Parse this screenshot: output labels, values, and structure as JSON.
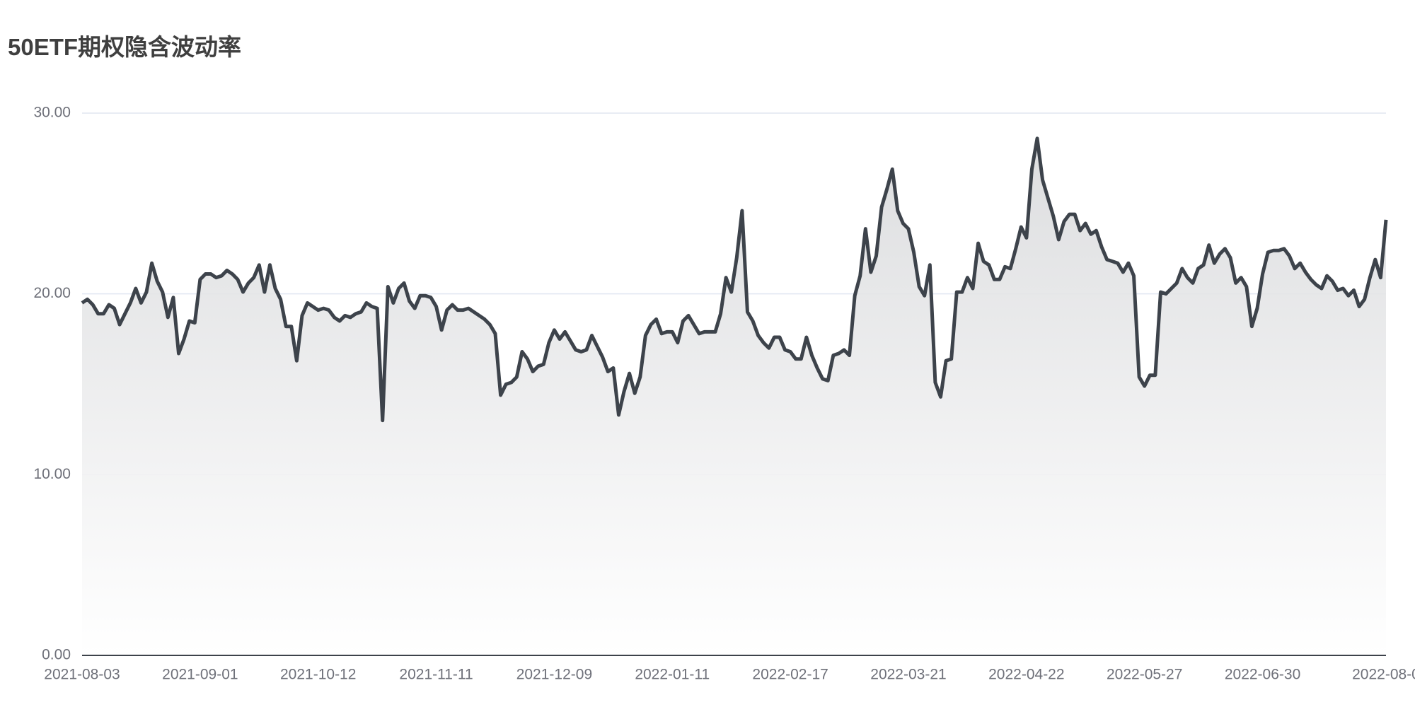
{
  "chart_data": {
    "type": "line",
    "title": "50ETF期权隐含波动率",
    "categories": [
      "2021-08-03",
      null,
      null,
      null,
      null,
      null,
      null,
      null,
      null,
      null,
      null,
      null,
      null,
      null,
      null,
      null,
      null,
      null,
      null,
      null,
      null,
      null,
      "2021-09-01",
      null,
      null,
      null,
      null,
      null,
      null,
      null,
      null,
      null,
      null,
      null,
      null,
      null,
      null,
      null,
      null,
      null,
      null,
      null,
      null,
      null,
      "2021-10-12",
      null,
      null,
      null,
      null,
      null,
      null,
      null,
      null,
      null,
      null,
      null,
      null,
      null,
      null,
      null,
      null,
      null,
      null,
      null,
      null,
      null,
      "2021-11-11",
      null,
      null,
      null,
      null,
      null,
      null,
      null,
      null,
      null,
      null,
      null,
      null,
      null,
      null,
      null,
      null,
      null,
      null,
      null,
      null,
      null,
      "2021-12-09",
      null,
      null,
      null,
      null,
      null,
      null,
      null,
      null,
      null,
      null,
      null,
      null,
      null,
      null,
      null,
      null,
      null,
      null,
      null,
      null,
      null,
      "2022-01-11",
      null,
      null,
      null,
      null,
      null,
      null,
      null,
      null,
      null,
      null,
      null,
      null,
      null,
      null,
      null,
      null,
      null,
      null,
      null,
      null,
      null,
      "2022-02-17",
      null,
      null,
      null,
      null,
      null,
      null,
      null,
      null,
      null,
      null,
      null,
      null,
      null,
      null,
      null,
      null,
      null,
      null,
      null,
      null,
      null,
      "2022-03-21",
      null,
      null,
      null,
      null,
      null,
      null,
      null,
      null,
      null,
      null,
      null,
      null,
      null,
      null,
      null,
      null,
      null,
      null,
      null,
      null,
      null,
      "2022-04-22",
      null,
      null,
      null,
      null,
      null,
      null,
      null,
      null,
      null,
      null,
      null,
      null,
      null,
      null,
      null,
      null,
      null,
      null,
      null,
      null,
      null,
      "2022-05-27",
      null,
      null,
      null,
      null,
      null,
      null,
      null,
      null,
      null,
      null,
      null,
      null,
      null,
      null,
      null,
      null,
      null,
      null,
      null,
      null,
      null,
      "2022-06-30",
      null,
      null,
      null,
      null,
      null,
      null,
      null,
      null,
      null,
      null,
      null,
      null,
      null,
      null,
      null,
      null,
      null,
      null,
      null,
      null,
      null,
      null,
      "2022-08-0"
    ],
    "values": [
      19.5,
      19.7,
      19.4,
      18.9,
      18.9,
      19.4,
      19.2,
      18.3,
      18.9,
      19.5,
      20.3,
      19.5,
      20.1,
      21.7,
      20.7,
      20.1,
      18.7,
      19.8,
      16.7,
      17.5,
      18.5,
      18.4,
      20.8,
      21.1,
      21.1,
      20.9,
      21.0,
      21.3,
      21.1,
      20.8,
      20.1,
      20.6,
      20.9,
      21.6,
      20.1,
      21.6,
      20.3,
      19.7,
      18.2,
      18.2,
      16.3,
      18.8,
      19.5,
      19.3,
      19.1,
      19.2,
      19.1,
      18.7,
      18.5,
      18.8,
      18.7,
      18.9,
      19.0,
      19.5,
      19.3,
      19.2,
      13.0,
      20.4,
      19.5,
      20.3,
      20.6,
      19.6,
      19.2,
      19.9,
      19.9,
      19.8,
      19.3,
      18.0,
      19.1,
      19.4,
      19.1,
      19.1,
      19.2,
      19.0,
      18.8,
      18.6,
      18.3,
      17.8,
      14.4,
      15.0,
      15.1,
      15.4,
      16.8,
      16.4,
      15.7,
      16.0,
      16.1,
      17.3,
      18.0,
      17.5,
      17.9,
      17.4,
      16.9,
      16.8,
      16.9,
      17.7,
      17.1,
      16.5,
      15.7,
      15.9,
      13.3,
      14.6,
      15.6,
      14.5,
      15.4,
      17.7,
      18.3,
      18.6,
      17.8,
      17.9,
      17.9,
      17.3,
      18.5,
      18.8,
      18.3,
      17.8,
      17.9,
      17.9,
      17.9,
      18.9,
      20.9,
      20.1,
      22.0,
      24.6,
      19.0,
      18.5,
      17.7,
      17.3,
      17.0,
      17.6,
      17.6,
      16.9,
      16.8,
      16.4,
      16.4,
      17.6,
      16.6,
      15.9,
      15.3,
      15.2,
      16.6,
      16.7,
      16.9,
      16.6,
      19.9,
      21.0,
      23.6,
      21.2,
      22.1,
      24.8,
      25.8,
      26.9,
      24.6,
      23.9,
      23.6,
      22.3,
      20.4,
      19.9,
      21.6,
      15.1,
      14.3,
      16.3,
      16.4,
      20.1,
      20.1,
      20.9,
      20.3,
      22.8,
      21.8,
      21.6,
      20.8,
      20.8,
      21.5,
      21.4,
      22.5,
      23.7,
      23.1,
      26.9,
      28.6,
      26.3,
      25.3,
      24.3,
      23.0,
      24.0,
      24.4,
      24.4,
      23.5,
      23.9,
      23.3,
      23.5,
      22.6,
      21.9,
      21.8,
      21.7,
      21.2,
      21.7,
      21.0,
      15.4,
      14.9,
      15.5,
      15.5,
      20.1,
      20.0,
      20.3,
      20.6,
      21.4,
      20.9,
      20.6,
      21.4,
      21.6,
      22.7,
      21.7,
      22.2,
      22.5,
      22.0,
      20.6,
      20.9,
      20.4,
      18.2,
      19.2,
      21.1,
      22.3,
      22.4,
      22.4,
      22.5,
      22.1,
      21.4,
      21.7,
      21.2,
      20.8,
      20.5,
      20.3,
      21.0,
      20.7,
      20.2,
      20.3,
      19.9,
      20.2,
      19.3,
      19.7,
      20.9,
      21.9,
      20.9,
      24.1
    ],
    "color": "#3d434b",
    "ylim": [
      0,
      30
    ],
    "yticks": [
      {
        "value": 0,
        "label": "0.00"
      },
      {
        "value": 10,
        "label": "10.00"
      },
      {
        "value": 20,
        "label": "20.00"
      },
      {
        "value": 30,
        "label": "30.00"
      }
    ],
    "grid": true
  }
}
